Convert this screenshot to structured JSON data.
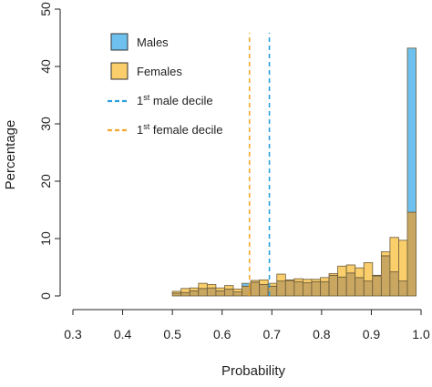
{
  "chart_data": {
    "type": "bar",
    "subtype": "overlapping-histogram",
    "xlabel": "Probability",
    "ylabel": "Percentage",
    "xlim": [
      0.3,
      1.0
    ],
    "ylim": [
      0,
      50
    ],
    "x_ticks": [
      "0.3",
      "0.4",
      "0.5",
      "0.6",
      "0.7",
      "0.8",
      "0.9",
      "1.0"
    ],
    "y_ticks": [
      "0",
      "10",
      "20",
      "30",
      "40",
      "50"
    ],
    "bin_width": 0.0175,
    "bin_start": 0.5,
    "series": [
      {
        "name": "Males",
        "color": "#6EC1EE",
        "values": [
          0.5,
          0.6,
          0.9,
          1.3,
          1.4,
          0.9,
          1.2,
          0.7,
          2.2,
          2.4,
          2.0,
          1.7,
          2.6,
          2.7,
          2.5,
          2.3,
          2.5,
          2.5,
          3.6,
          3.3,
          4.0,
          3.2,
          2.6,
          3.5,
          7.0,
          4.2,
          2.6,
          43.2
        ]
      },
      {
        "name": "Females",
        "color": "#F9CE6B",
        "values": [
          0.8,
          1.3,
          1.4,
          2.2,
          2.0,
          1.4,
          1.8,
          1.2,
          1.7,
          2.7,
          2.8,
          2.2,
          3.8,
          2.8,
          3.0,
          2.9,
          2.9,
          3.2,
          3.9,
          5.2,
          5.4,
          4.9,
          5.8,
          3.6,
          7.7,
          10.2,
          9.7,
          14.6
        ]
      }
    ],
    "overlap_color": "#C9A760",
    "reference_lines": [
      {
        "name": "1st male decile",
        "x": 0.695,
        "color": "#2A9FDC",
        "style": "dashed"
      },
      {
        "name": "1st female decile",
        "x": 0.655,
        "color": "#F2A62A",
        "style": "dashed"
      }
    ],
    "legend": {
      "placement": "top-left",
      "items": [
        {
          "type": "box",
          "label": "Males",
          "color": "#6EC1EE"
        },
        {
          "type": "box",
          "label": "Females",
          "color": "#F9CE6B"
        },
        {
          "type": "line",
          "label_base": "1",
          "label_sup": "st",
          "label_rest": " male decile",
          "color": "#2A9FDC"
        },
        {
          "type": "line",
          "label_base": "1",
          "label_sup": "st",
          "label_rest": " female decile",
          "color": "#F2A62A"
        }
      ]
    },
    "grid": false
  }
}
